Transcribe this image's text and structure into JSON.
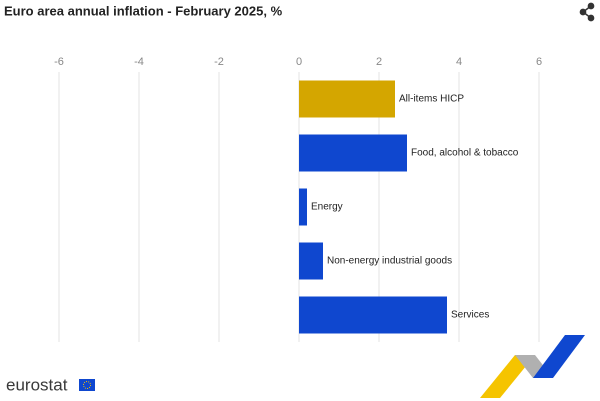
{
  "chart_data": {
    "type": "hbar",
    "title": "Euro area annual inflation - February 2025, %",
    "categories": [
      "All-items HICP",
      "Food, alcohol & tobacco",
      "Energy",
      "Non-energy industrial goods",
      "Services"
    ],
    "values": [
      2.4,
      2.7,
      0.2,
      0.6,
      3.7
    ],
    "colors": [
      "#d4a600",
      "#0f47cf",
      "#0f47cf",
      "#0f47cf",
      "#0f47cf"
    ],
    "xlim": [
      -7,
      7
    ],
    "xticks": [
      -6,
      -4,
      -2,
      0,
      2,
      4,
      6
    ],
    "grid": true
  },
  "footer": {
    "logo": "eurostat"
  }
}
